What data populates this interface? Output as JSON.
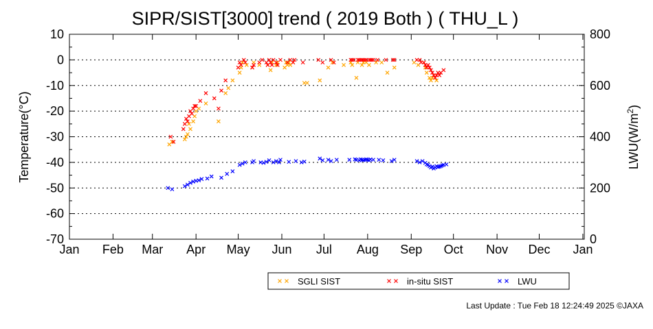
{
  "footer": {
    "last_update": "Last Update : Tue Feb 18 12:24:49 2025 ©JAXA"
  },
  "chart_data": {
    "type": "scatter",
    "title": "SIPR/SIST[3000] trend ( 2019 Both ) ( THU_L )",
    "xlabel": "",
    "ylabel": "Temperature(°C)",
    "y2label_main": "LWU(W/m",
    "y2label_sup": "2",
    "y2label_tail": ")",
    "xlim": [
      0,
      366
    ],
    "ylim": [
      -70,
      10
    ],
    "y2lim": [
      0,
      800
    ],
    "x_ticks": [
      {
        "pos": 0,
        "label": "Jan"
      },
      {
        "pos": 31,
        "label": "Feb"
      },
      {
        "pos": 59,
        "label": "Mar"
      },
      {
        "pos": 90,
        "label": "Apr"
      },
      {
        "pos": 120,
        "label": "May"
      },
      {
        "pos": 151,
        "label": "Jun"
      },
      {
        "pos": 181,
        "label": "Jul"
      },
      {
        "pos": 212,
        "label": "Aug"
      },
      {
        "pos": 243,
        "label": "Sep"
      },
      {
        "pos": 273,
        "label": "Oct"
      },
      {
        "pos": 304,
        "label": "Nov"
      },
      {
        "pos": 334,
        "label": "Dec"
      },
      {
        "pos": 365,
        "label": "Jan"
      }
    ],
    "y_ticks": [
      10,
      0,
      -10,
      -20,
      -30,
      -40,
      -50,
      -60,
      -70
    ],
    "y2_ticks": [
      800,
      600,
      400,
      200,
      0
    ],
    "grid": "horizontal dotted",
    "legend_position": "bottom",
    "series": [
      {
        "name": "SGLI SIST",
        "color": "#ffa500",
        "axis": "left",
        "x": [
          71,
          73,
          82,
          83,
          84,
          85,
          86,
          88,
          89,
          90,
          92,
          97,
          106,
          111,
          113,
          116,
          121,
          122,
          123,
          126,
          130,
          131,
          135,
          141,
          143,
          144,
          147,
          148,
          153,
          154,
          155,
          156,
          157,
          159,
          167,
          169,
          178,
          184,
          187,
          195,
          200,
          201,
          204,
          205,
          208,
          209,
          211,
          213,
          218,
          222,
          226,
          231,
          245,
          248,
          252,
          253,
          254,
          256,
          257,
          258,
          259,
          261
        ],
        "y": [
          -33,
          -32,
          -31,
          -30,
          -29,
          -25,
          -27,
          -24,
          -22,
          -20,
          -19,
          -17,
          -24,
          -13,
          -11,
          -8,
          -5,
          -3,
          -1,
          -2,
          -3,
          -1,
          -2,
          -2,
          -4,
          -1,
          -2,
          -1,
          -3,
          -1,
          -2,
          -1,
          -2,
          -1,
          -9,
          -9,
          -8,
          -3,
          -1,
          -2,
          -1,
          -2,
          -7,
          -1,
          -2,
          -1,
          -1,
          -2,
          -1,
          -1,
          -5,
          -3,
          -1,
          -2,
          -1,
          -3,
          -5,
          -7,
          -8,
          -7,
          -6,
          -8
        ]
      },
      {
        "name": "in-situ SIST",
        "color": "#ff0000",
        "axis": "left",
        "x": [
          72,
          74,
          81,
          82,
          83,
          84,
          85,
          86,
          87,
          88,
          89,
          90,
          93,
          97,
          103,
          106,
          108,
          111,
          120,
          121,
          122,
          124,
          125,
          130,
          131,
          135,
          137,
          140,
          141,
          142,
          143,
          144,
          145,
          147,
          148,
          150,
          155,
          157,
          159,
          160,
          166,
          177,
          180,
          186,
          188,
          200,
          201,
          202,
          205,
          206,
          207,
          208,
          209,
          210,
          211,
          213,
          214,
          215,
          216,
          219,
          225,
          230,
          231,
          247,
          249,
          250,
          252,
          253,
          254,
          255,
          256,
          257,
          258,
          259,
          260,
          261,
          262,
          263,
          264,
          266
        ],
        "y": [
          -30,
          -32,
          -27,
          -25,
          -23,
          -24,
          -22,
          -20,
          -21,
          -19,
          -18,
          -18,
          -16,
          -13,
          -15,
          -19,
          -12,
          -8,
          -3,
          -1,
          -2,
          0,
          -1,
          -3,
          -2,
          -1,
          0,
          -1,
          -2,
          0,
          -1,
          -2,
          0,
          -1,
          -2,
          0,
          -1,
          0,
          -1,
          0,
          -1,
          0,
          -1,
          0,
          -1,
          0,
          0,
          0,
          0,
          0,
          0,
          0,
          0,
          0,
          0,
          0,
          0,
          0,
          0,
          0,
          0,
          0,
          0,
          0,
          0,
          -1,
          -1,
          -2,
          -3,
          -2,
          -3,
          -4,
          -5,
          -6,
          -7,
          -6,
          -5,
          -6,
          -5,
          -4
        ]
      },
      {
        "name": "LWU",
        "color": "#0000ff",
        "axis": "right",
        "x": [
          70,
          73,
          82,
          84,
          86,
          88,
          90,
          92,
          94,
          98,
          101,
          108,
          112,
          116,
          121,
          123,
          125,
          130,
          131,
          136,
          138,
          140,
          142,
          145,
          147,
          149,
          150,
          156,
          161,
          165,
          167,
          178,
          180,
          184,
          186,
          190,
          199,
          203,
          204,
          206,
          207,
          208,
          209,
          210,
          211,
          212,
          213,
          214,
          216,
          220,
          223,
          229,
          231,
          247,
          249,
          251,
          253,
          254,
          255,
          256,
          257,
          258,
          259,
          260,
          261,
          262,
          263,
          264,
          265,
          266,
          268
        ],
        "y": [
          200,
          195,
          207,
          213,
          220,
          225,
          228,
          230,
          235,
          237,
          245,
          240,
          255,
          265,
          290,
          295,
          300,
          300,
          305,
          300,
          298,
          302,
          308,
          300,
          305,
          300,
          310,
          302,
          305,
          300,
          303,
          315,
          308,
          310,
          305,
          310,
          310,
          312,
          310,
          308,
          312,
          310,
          308,
          310,
          312,
          310,
          308,
          312,
          310,
          310,
          308,
          305,
          310,
          305,
          300,
          305,
          298,
          292,
          290,
          285,
          280,
          283,
          276,
          280,
          285,
          282,
          283,
          285,
          288,
          290,
          292
        ]
      }
    ]
  }
}
